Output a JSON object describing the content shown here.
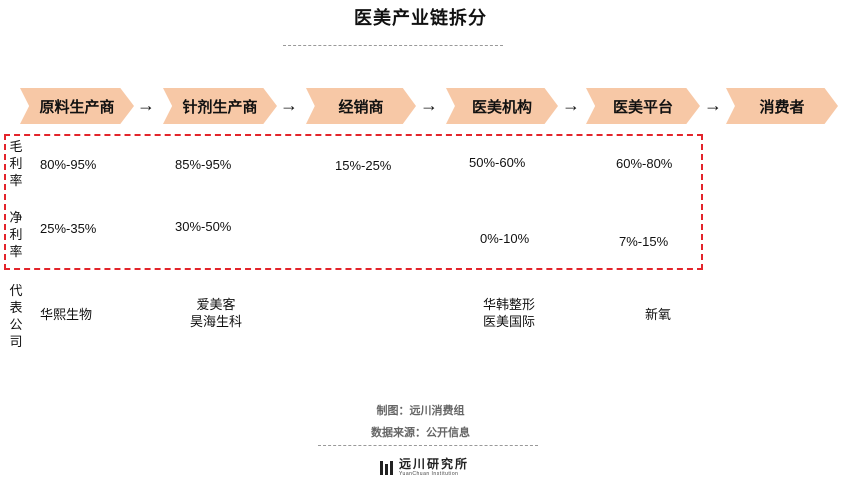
{
  "title": "医美产业链拆分",
  "stages": [
    "原料生产商",
    "针剂生产商",
    "经销商",
    "医美机构",
    "医美平台",
    "消费者"
  ],
  "arrow_glyph": "→",
  "rows": {
    "gross_margin": {
      "label": [
        "毛",
        "利",
        "率"
      ],
      "values": [
        "80%-95%",
        "85%-95%",
        "15%-25%",
        "50%-60%",
        "60%-80%"
      ]
    },
    "net_margin": {
      "label": [
        "净",
        "利",
        "率"
      ],
      "values": [
        "25%-35%",
        "30%-50%",
        "0%-10%",
        "7%-15%"
      ]
    },
    "companies": {
      "label": [
        "代",
        "表",
        "公",
        "司"
      ],
      "raw_material": [
        "华熙生物"
      ],
      "injection": [
        "爱美客",
        "昊海生科"
      ],
      "institution": [
        "华韩整形",
        "医美国际"
      ],
      "platform": [
        "新氧"
      ]
    }
  },
  "footer": {
    "made_by": "制图：远川消费组",
    "source": "数据来源：公开信息",
    "logo_cn": "远川研究所",
    "logo_en": "YuanChuan Institution"
  },
  "colors": {
    "stage_fill": "#f7c8a6",
    "dashed_border": "#e3242b"
  }
}
